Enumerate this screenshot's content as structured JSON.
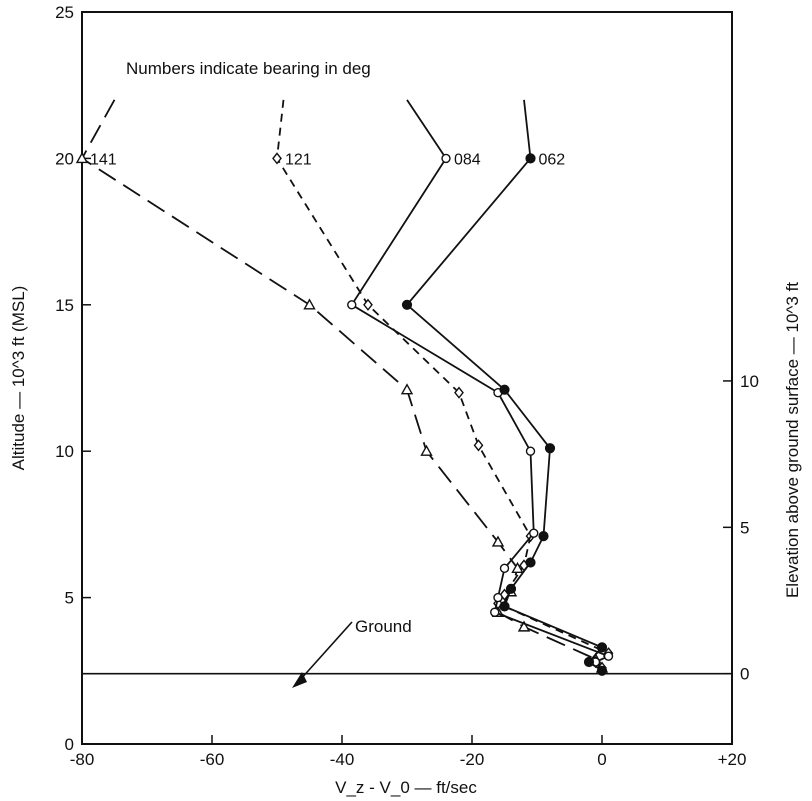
{
  "chart_data": {
    "type": "line",
    "annotation": "Numbers indicate bearing in deg",
    "xlabel": "V_z - V_0 — ft/sec",
    "ylabel": "Altitude — 10^3 ft (MSL)",
    "y2label": "Elevation above ground surface — 10^3 ft",
    "xlim": [
      -80,
      20
    ],
    "ylim": [
      0,
      25
    ],
    "x_ticks": [
      -80,
      -60,
      -40,
      -20,
      0,
      20
    ],
    "x_tick_labels": [
      "-80",
      "-60",
      "-40",
      "-20",
      "0",
      "+20"
    ],
    "y_ticks": [
      0,
      5,
      10,
      15,
      20,
      25
    ],
    "y_tick_labels": [
      "0",
      "5",
      "10",
      "15",
      "20",
      "25"
    ],
    "y2_ticks": [
      0,
      5,
      10
    ],
    "y2_tick_labels": [
      "0",
      "5",
      "10"
    ],
    "ground": {
      "label": "Ground",
      "altitude": 2.4
    },
    "grid": false,
    "series": [
      {
        "name": "141",
        "marker": "triangle",
        "dash": "long-dash",
        "x": [
          -75,
          -80,
          -45,
          -30,
          -27,
          -16,
          -13,
          -14,
          -16,
          -12,
          -1,
          0
        ],
        "y": [
          22,
          20,
          15,
          12.1,
          10,
          6.9,
          6,
          5.2,
          4.5,
          4,
          2.9,
          2.6
        ]
      },
      {
        "name": "121",
        "marker": "diamond",
        "dash": "short-dash",
        "x": [
          -49,
          -50,
          -36,
          -22,
          -19,
          -11,
          -12,
          -15,
          -16,
          1,
          -1,
          0
        ],
        "y": [
          22,
          20,
          15,
          12,
          10.2,
          7.1,
          6.1,
          5.1,
          4.8,
          3.1,
          2.8,
          2.6
        ]
      },
      {
        "name": "084",
        "marker": "circle-open",
        "dash": "solid",
        "x": [
          -30,
          -24,
          -38.5,
          -16,
          -11,
          -10.5,
          -15,
          -16,
          -16.5,
          1,
          -1,
          0
        ],
        "y": [
          22,
          20,
          15,
          12,
          10,
          7.2,
          6,
          5,
          4.5,
          3,
          2.8,
          2.5
        ]
      },
      {
        "name": "062",
        "marker": "circle-filled",
        "dash": "solid",
        "x": [
          -12,
          -11,
          -30,
          -15,
          -8,
          -9,
          -11,
          -14,
          -15,
          0,
          -2,
          0
        ],
        "y": [
          22,
          20,
          15,
          12.1,
          10.1,
          7.1,
          6.2,
          5.3,
          4.7,
          3.3,
          2.8,
          2.5
        ]
      }
    ]
  }
}
